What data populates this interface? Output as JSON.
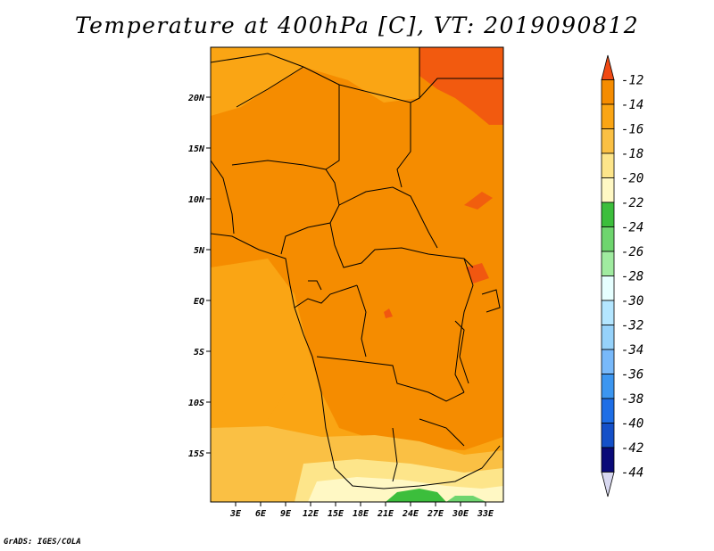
{
  "title": "Temperature at 400hPa [C], VT: 2019090812",
  "credit": "GrADS: IGES/COLA",
  "lat_ticks": [
    "20N",
    "15N",
    "10N",
    "5N",
    "EQ",
    "5S",
    "10S",
    "15S"
  ],
  "lon_ticks": [
    "3E",
    "6E",
    "9E",
    "12E",
    "15E",
    "18E",
    "21E",
    "24E",
    "27E",
    "30E",
    "33E"
  ],
  "colorbar": {
    "labels": [
      "-12",
      "-14",
      "-16",
      "-18",
      "-20",
      "-22",
      "-24",
      "-26",
      "-28",
      "-30",
      "-32",
      "-34",
      "-36",
      "-38",
      "-40",
      "-42",
      "-44"
    ],
    "colors": [
      "#f04a14",
      "#f58c00",
      "#faa514",
      "#fac044",
      "#fde58a",
      "#fff8c4",
      "#3cbe3c",
      "#6ed56e",
      "#a0eba0",
      "#e6ffff",
      "#b4e6ff",
      "#96d2fa",
      "#78b9fa",
      "#3c96f0",
      "#1e6ee6",
      "#1450c8",
      "#0a0a78",
      "#d8d8f0"
    ]
  },
  "fields": {
    "c12": "#f04a14",
    "c14": "#f58c00",
    "c16": "#faa514",
    "c18": "#fac044",
    "c20": "#fde58a",
    "c22": "#fff8c4",
    "c24": "#3cbe3c"
  }
}
